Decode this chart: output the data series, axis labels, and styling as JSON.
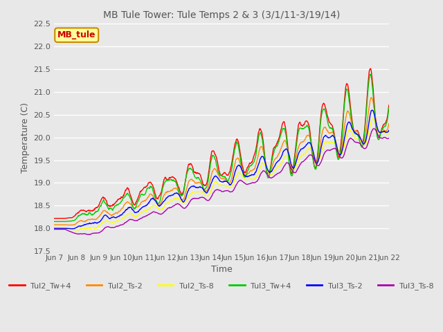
{
  "title": "MB Tule Tower: Tule Temps 2 & 3 (3/1/11-3/19/14)",
  "xlabel": "Time",
  "ylabel": "Temperature (C)",
  "ylim": [
    17.5,
    22.5
  ],
  "x_tick_labels": [
    "Jun 7",
    "Jun 8",
    "Jun 9",
    "Jun 10",
    "Jun 11",
    "Jun 12",
    "Jun 13",
    "Jun 14",
    "Jun 15",
    "Jun 16",
    "Jun 17",
    "Jun 18",
    "Jun 19",
    "Jun 20",
    "Jun 21",
    "Jun 22"
  ],
  "background_color": "#e8e8e8",
  "plot_bg_color": "#e8e8e8",
  "grid_color": "#ffffff",
  "series": {
    "Tul2_Tw+4": {
      "color": "#ff0000"
    },
    "Tul2_Ts-2": {
      "color": "#ff8800"
    },
    "Tul2_Ts-8": {
      "color": "#ffff00"
    },
    "Tul3_Tw+4": {
      "color": "#00cc00"
    },
    "Tul3_Ts-2": {
      "color": "#0000ff"
    },
    "Tul3_Ts-8": {
      "color": "#aa00aa"
    }
  },
  "legend_box": {
    "text": "MB_tule",
    "facecolor": "#ffff99",
    "edgecolor": "#cc8800",
    "textcolor": "#cc0000"
  },
  "title_color": "#555555",
  "label_color": "#555555",
  "yticks": [
    17.5,
    18.0,
    18.5,
    19.0,
    19.5,
    20.0,
    20.5,
    21.0,
    21.5,
    22.0,
    22.5
  ]
}
